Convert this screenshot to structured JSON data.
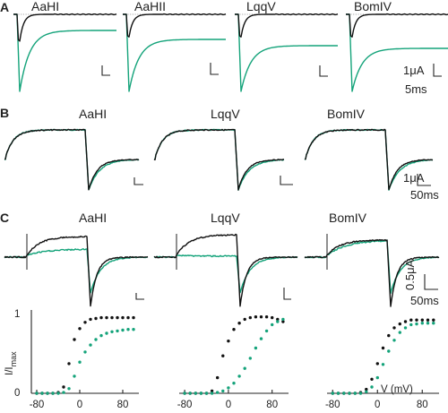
{
  "figure": {
    "panels": [
      {
        "letter": "A",
        "toxins": [
          "AaHI",
          "AaHII",
          "LqqV",
          "BomIV"
        ],
        "scale_current": "1μA",
        "scale_time": "5ms"
      },
      {
        "letter": "B",
        "toxins": [
          "AaHI",
          "LqqV",
          "BomIV"
        ],
        "scale_current": "1μA",
        "scale_time": "50ms"
      },
      {
        "letter": "C",
        "toxins": [
          "AaHI",
          "LqqV",
          "BomIV"
        ],
        "scale_current": "0.5μA",
        "scale_time": "50ms"
      }
    ],
    "iv": {
      "ylabel_main": "I/I",
      "ylabel_sub": "max",
      "yticks": [
        "0",
        "1"
      ],
      "xticks": [
        "-80",
        "0",
        "80"
      ],
      "xlabel": "V (mV)"
    }
  },
  "colors": {
    "control": "#111111",
    "toxin": "#14a37a"
  },
  "chart_data": [
    {
      "type": "scatter",
      "toxin": "AaHI",
      "xlim": [
        -90,
        110
      ],
      "ylim": [
        0,
        1
      ],
      "series": [
        {
          "color": "#111111",
          "x": [
            -80,
            -70,
            -60,
            -50,
            -40,
            -30,
            -20,
            -10,
            0,
            10,
            20,
            30,
            40,
            50,
            60,
            70,
            80,
            90,
            100
          ],
          "y": [
            0,
            0,
            0,
            0,
            0.01,
            0.08,
            0.38,
            0.69,
            0.83,
            0.91,
            0.95,
            0.96,
            0.97,
            0.97,
            0.97,
            0.97,
            0.97,
            0.97,
            0.97
          ]
        },
        {
          "color": "#14a37a",
          "x": [
            -80,
            -70,
            -60,
            -50,
            -40,
            -30,
            -20,
            -10,
            0,
            10,
            20,
            30,
            40,
            50,
            60,
            70,
            80,
            90,
            100
          ],
          "y": [
            0,
            0,
            0,
            0,
            0,
            0.01,
            0.06,
            0.22,
            0.4,
            0.53,
            0.62,
            0.69,
            0.74,
            0.77,
            0.79,
            0.8,
            0.81,
            0.82,
            0.82
          ]
        }
      ]
    },
    {
      "type": "scatter",
      "toxin": "LqqV",
      "xlim": [
        -90,
        110
      ],
      "ylim": [
        0,
        1
      ],
      "series": [
        {
          "color": "#111111",
          "x": [
            -80,
            -70,
            -60,
            -50,
            -40,
            -30,
            -20,
            -10,
            0,
            10,
            20,
            30,
            40,
            50,
            60,
            70,
            80,
            90,
            100
          ],
          "y": [
            0,
            0,
            0,
            0,
            0,
            0.03,
            0.2,
            0.48,
            0.67,
            0.82,
            0.9,
            0.95,
            0.97,
            0.98,
            0.98,
            0.98,
            0.97,
            0.95,
            0.92
          ]
        },
        {
          "color": "#14a37a",
          "x": [
            -80,
            -70,
            -60,
            -50,
            -40,
            -30,
            -20,
            -10,
            0,
            10,
            20,
            30,
            40,
            50,
            60,
            70,
            80,
            90,
            100
          ],
          "y": [
            0,
            0,
            0,
            0,
            0,
            0,
            0.01,
            0.03,
            0.07,
            0.13,
            0.22,
            0.32,
            0.45,
            0.58,
            0.7,
            0.8,
            0.88,
            0.92,
            0.95
          ]
        }
      ]
    },
    {
      "type": "scatter",
      "toxin": "BomIV",
      "xlim": [
        -90,
        110
      ],
      "ylim": [
        0,
        1
      ],
      "series": [
        {
          "color": "#111111",
          "x": [
            -80,
            -70,
            -60,
            -50,
            -40,
            -30,
            -20,
            -10,
            0,
            10,
            20,
            30,
            40,
            50,
            60,
            70,
            80,
            90,
            100
          ],
          "y": [
            0,
            0,
            0,
            0,
            0,
            0.01,
            0.05,
            0.18,
            0.38,
            0.58,
            0.74,
            0.84,
            0.89,
            0.92,
            0.94,
            0.94,
            0.94,
            0.94,
            0.94
          ]
        },
        {
          "color": "#14a37a",
          "x": [
            -80,
            -70,
            -60,
            -50,
            -40,
            -30,
            -20,
            -10,
            0,
            10,
            20,
            30,
            40,
            50,
            60,
            70,
            80,
            90,
            100
          ],
          "y": [
            0,
            0,
            0,
            0,
            0,
            0,
            0.02,
            0.08,
            0.2,
            0.37,
            0.54,
            0.68,
            0.78,
            0.84,
            0.88,
            0.89,
            0.9,
            0.9,
            0.9
          ]
        }
      ]
    }
  ]
}
